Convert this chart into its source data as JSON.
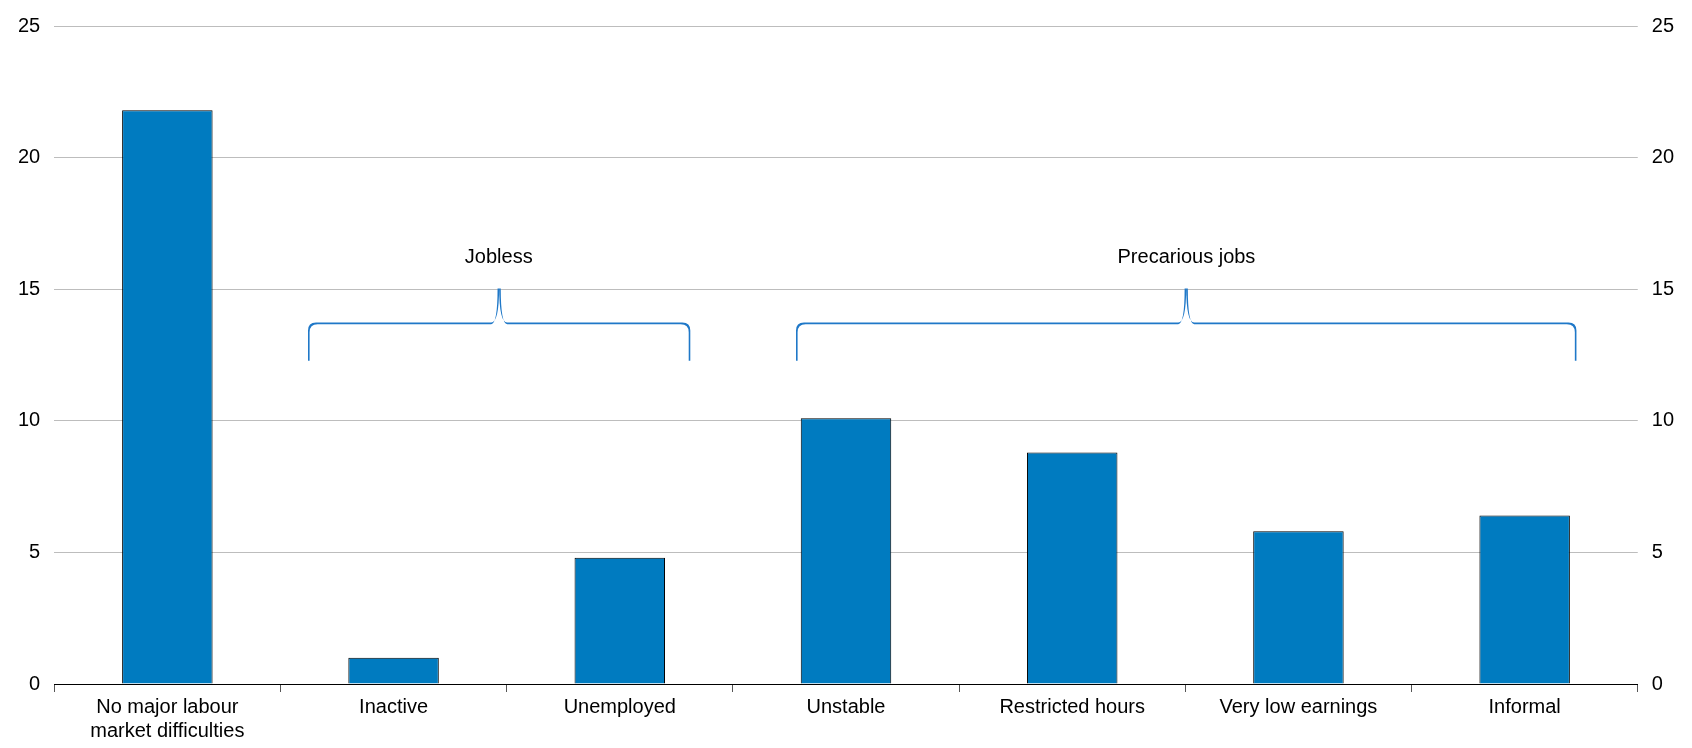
{
  "chart_data": {
    "type": "bar",
    "categories": [
      "No major labour market difficulties",
      "Inactive",
      "Unemployed",
      "Unstable",
      "Restricted hours",
      "Very low earnings",
      "Informal"
    ],
    "series": [
      {
        "color": "#007bc0",
        "values": [
          21.8,
          1.0,
          4.8,
          10.1,
          8.8,
          5.8,
          6.4
        ]
      }
    ],
    "ylim": [
      0,
      25
    ],
    "yticks": [
      0,
      5,
      10,
      15,
      20,
      25
    ],
    "y2lim": [
      0,
      25
    ],
    "y2ticks": [
      0,
      5,
      10,
      15,
      20,
      25
    ],
    "grid": "y",
    "legend": false,
    "annotations": [
      "Jobless",
      "Precarious jobs"
    ]
  }
}
